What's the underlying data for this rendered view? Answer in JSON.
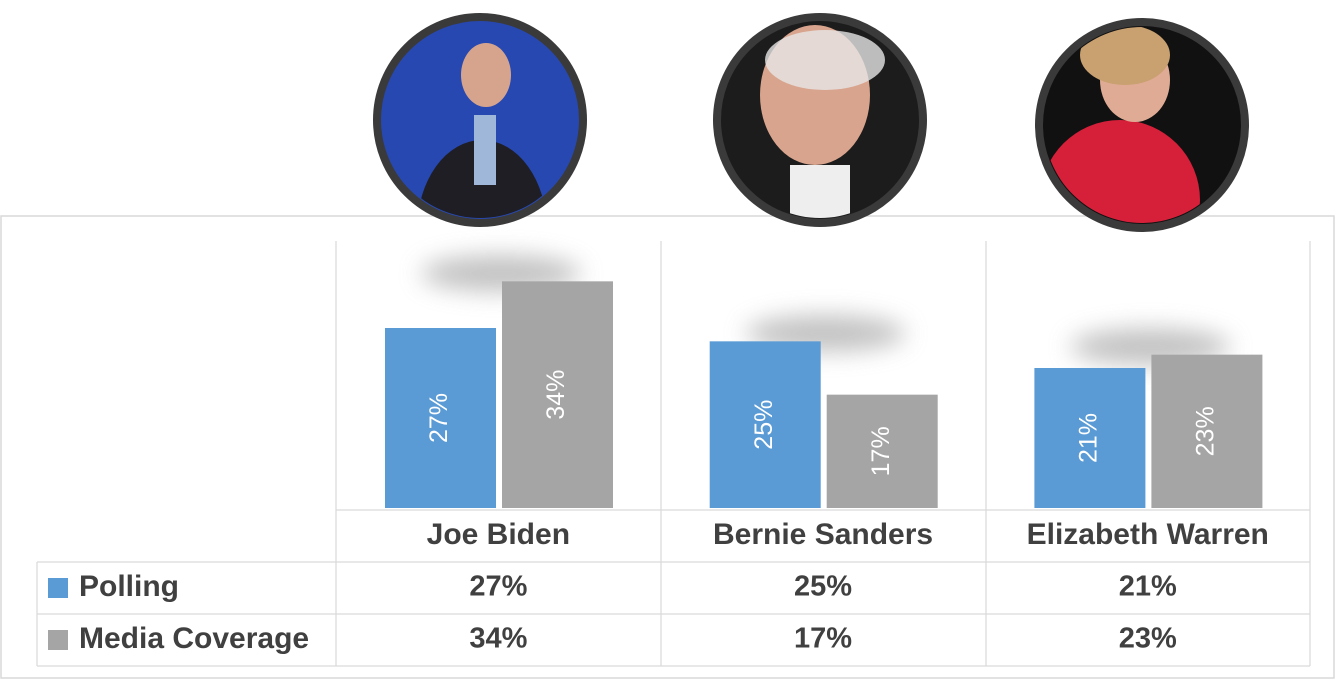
{
  "chart_data": {
    "type": "bar",
    "categories": [
      "Joe Biden",
      "Bernie Sanders",
      "Elizabeth Warren"
    ],
    "series": [
      {
        "name": "Polling",
        "color": "#5b9bd5",
        "values": [
          27,
          25,
          21
        ],
        "value_labels": [
          "27%",
          "25%",
          "21%"
        ]
      },
      {
        "name": "Media Coverage",
        "color": "#a5a5a5",
        "values": [
          34,
          17,
          23
        ],
        "value_labels": [
          "34%",
          "17%",
          "23%"
        ]
      }
    ],
    "ylim": [
      0,
      36
    ]
  }
}
